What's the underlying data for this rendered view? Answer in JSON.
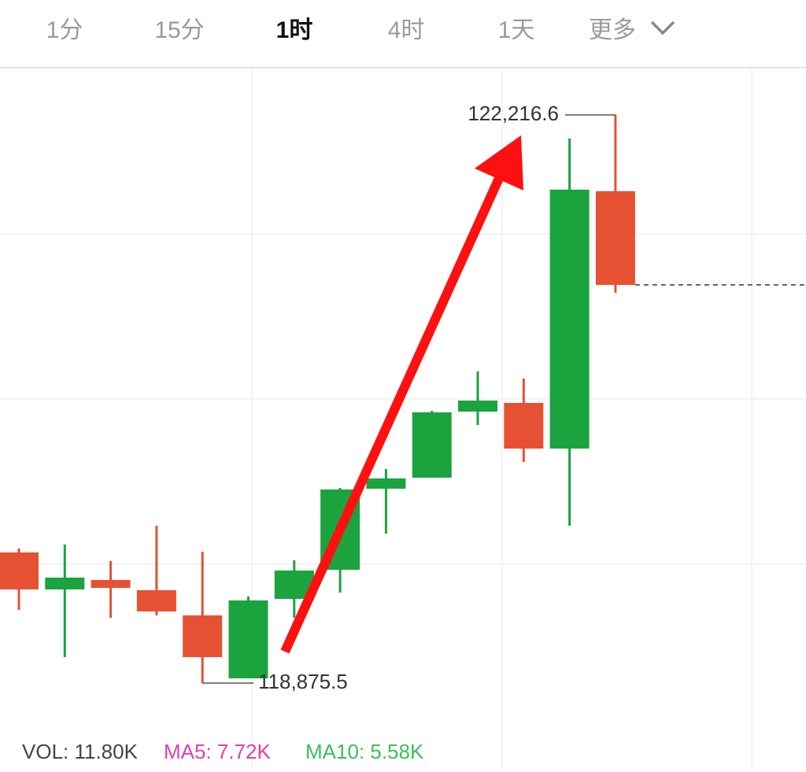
{
  "tabs": [
    "1分",
    "15分",
    "1时",
    "4时",
    "1天",
    "更多"
  ],
  "active_tab": 2,
  "chart_data": {
    "type": "candlestick",
    "up_color": "#1ba33e",
    "down_color": "#e65133",
    "ylim": [
      118588.6,
      122485.0
    ],
    "open": [
      119643.7,
      119426.2,
      119481.7,
      119421.6,
      119273.5,
      118903.3,
      119370.7,
      119541.9,
      120018.5,
      120083.3,
      120472.0,
      120522.9,
      120254.5,
      121767.8
    ],
    "close": [
      119426.2,
      119495.6,
      119435.4,
      119296.6,
      119028.2,
      119361.4,
      119537.2,
      120013.9,
      120078.7,
      120467.4,
      120536.8,
      120254.5,
      121777.0,
      121217.1
    ],
    "high": [
      119666.8,
      119690.0,
      119592.8,
      119801.0,
      119648.3,
      119384.5,
      119597.4,
      120023.1,
      120134.2,
      120476.6,
      120708.0,
      120666.4,
      122077.8,
      122216.6
    ],
    "low": [
      119305.9,
      119028.2,
      119259.6,
      119273.5,
      118875.5,
      118903.3,
      119259.6,
      119407.7,
      119754.7,
      120083.3,
      120393.4,
      120175.9,
      119801.0,
      121170.8
    ],
    "max_label": {
      "value": 122216.6,
      "label": "122,216.6"
    },
    "min_label": {
      "value": 118875.5,
      "label": "118,875.5"
    },
    "indicators": [
      {
        "text": "VOL: 11.80K",
        "color": "#444444"
      },
      {
        "text": "MA5: 7.72K",
        "color": "#e040b0"
      },
      {
        "text": "MA10: 5.58K",
        "color": "#3cbf5a"
      }
    ]
  }
}
